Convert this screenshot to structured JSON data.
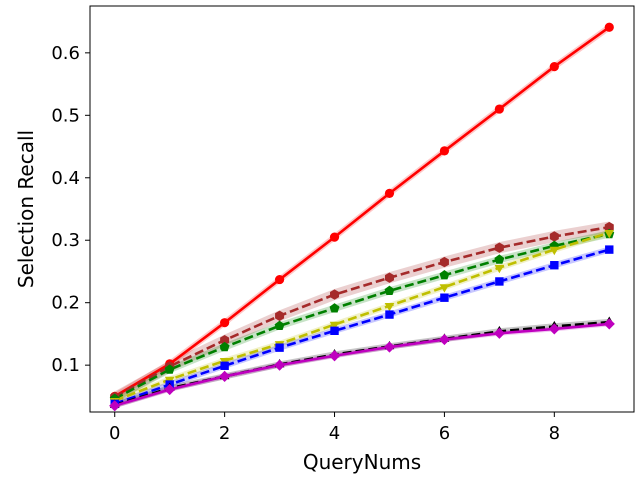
{
  "chart_data": {
    "type": "line",
    "title": "",
    "xlabel": "QueryNums",
    "ylabel": "Selection Recall",
    "xlim": [
      -0.45,
      9.45
    ],
    "ylim": [
      0.025,
      0.675
    ],
    "x_ticks": [
      0,
      2,
      4,
      6,
      8
    ],
    "y_ticks": [
      0.1,
      0.2,
      0.3,
      0.4,
      0.5,
      0.6
    ],
    "y_tick_labels": [
      "0.1",
      "0.2",
      "0.3",
      "0.4",
      "0.5",
      "0.6"
    ],
    "grid": false,
    "legend": "none",
    "x": [
      0,
      1,
      2,
      3,
      4,
      5,
      6,
      7,
      8,
      9
    ],
    "series": [
      {
        "color": "#ff0000",
        "line_style": "solid",
        "marker": "circle",
        "values": [
          0.05,
          0.102,
          0.168,
          0.237,
          0.305,
          0.375,
          0.443,
          0.51,
          0.578,
          0.641
        ],
        "band": 0.006
      },
      {
        "color": "#a52a2a",
        "line_style": "dashed",
        "marker": "hexagon",
        "values": [
          0.049,
          0.098,
          0.14,
          0.179,
          0.213,
          0.24,
          0.265,
          0.288,
          0.306,
          0.321
        ],
        "band": 0.009
      },
      {
        "color": "#008000",
        "line_style": "dashed",
        "marker": "pentagon",
        "values": [
          0.046,
          0.093,
          0.129,
          0.163,
          0.191,
          0.219,
          0.244,
          0.269,
          0.291,
          0.31
        ],
        "band": 0.006
      },
      {
        "color": "#bfbf00",
        "line_style": "dashed",
        "marker": "triangle-down",
        "values": [
          0.043,
          0.077,
          0.107,
          0.134,
          0.165,
          0.195,
          0.225,
          0.256,
          0.285,
          0.312
        ],
        "band": 0.005
      },
      {
        "color": "#0000ff",
        "line_style": "dashed",
        "marker": "square",
        "values": [
          0.038,
          0.069,
          0.099,
          0.128,
          0.155,
          0.181,
          0.208,
          0.234,
          0.26,
          0.285
        ],
        "band": 0.005
      },
      {
        "color": "#000000",
        "line_style": "dashed",
        "marker": "triangle-up",
        "values": [
          0.036,
          0.063,
          0.082,
          0.101,
          0.117,
          0.13,
          0.142,
          0.154,
          0.162,
          0.169
        ],
        "band": 0.005
      },
      {
        "color": "#bf00bf",
        "line_style": "solid",
        "marker": "diamond",
        "values": [
          0.035,
          0.061,
          0.082,
          0.1,
          0.115,
          0.129,
          0.141,
          0.151,
          0.158,
          0.166
        ],
        "band": 0.004
      }
    ]
  }
}
